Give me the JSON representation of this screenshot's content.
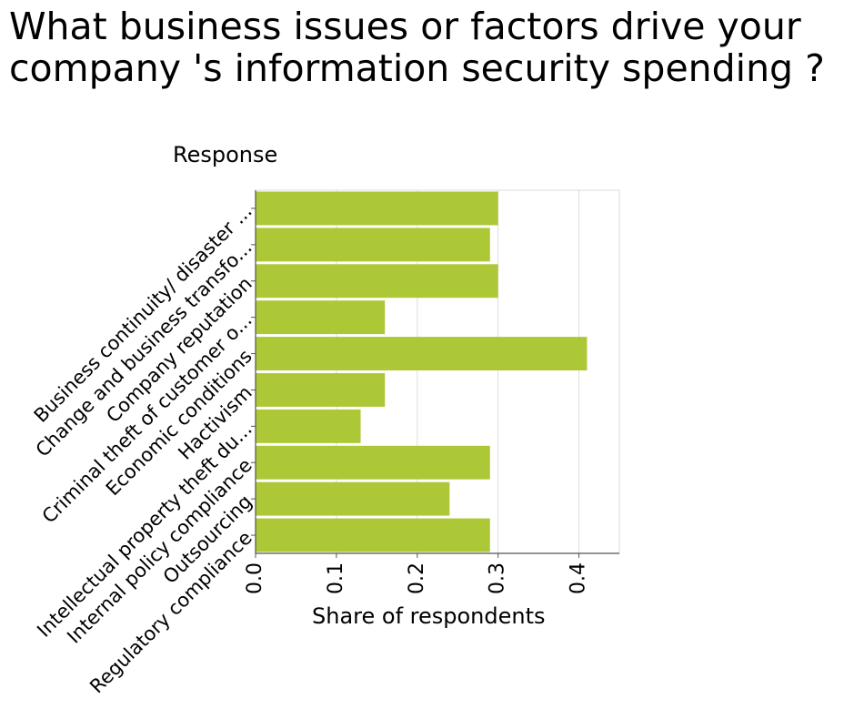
{
  "chart_data": {
    "type": "bar",
    "orientation": "horizontal",
    "title": "What business issues or factors drive your company 's information security spending ?",
    "xlabel": "Share of respondents",
    "ylabel": "Response",
    "xlim": [
      0,
      0.45
    ],
    "xticks": [
      "0.0",
      "0.1",
      "0.2",
      "0.3",
      "0.4"
    ],
    "grid": true,
    "bar_color": "#adc837",
    "categories": [
      "Business continuity/ disaster ...",
      "Change and business transfo...",
      "Company reputation",
      "Criminal theft of customer o...",
      "Economic conditions",
      "Hactivism",
      "Intellectual property theft du...",
      "Internal policy compliance",
      "Outsourcing",
      "Regulatory compliance"
    ],
    "values": [
      0.3,
      0.29,
      0.3,
      0.16,
      0.41,
      0.16,
      0.13,
      0.29,
      0.24,
      0.29
    ]
  }
}
